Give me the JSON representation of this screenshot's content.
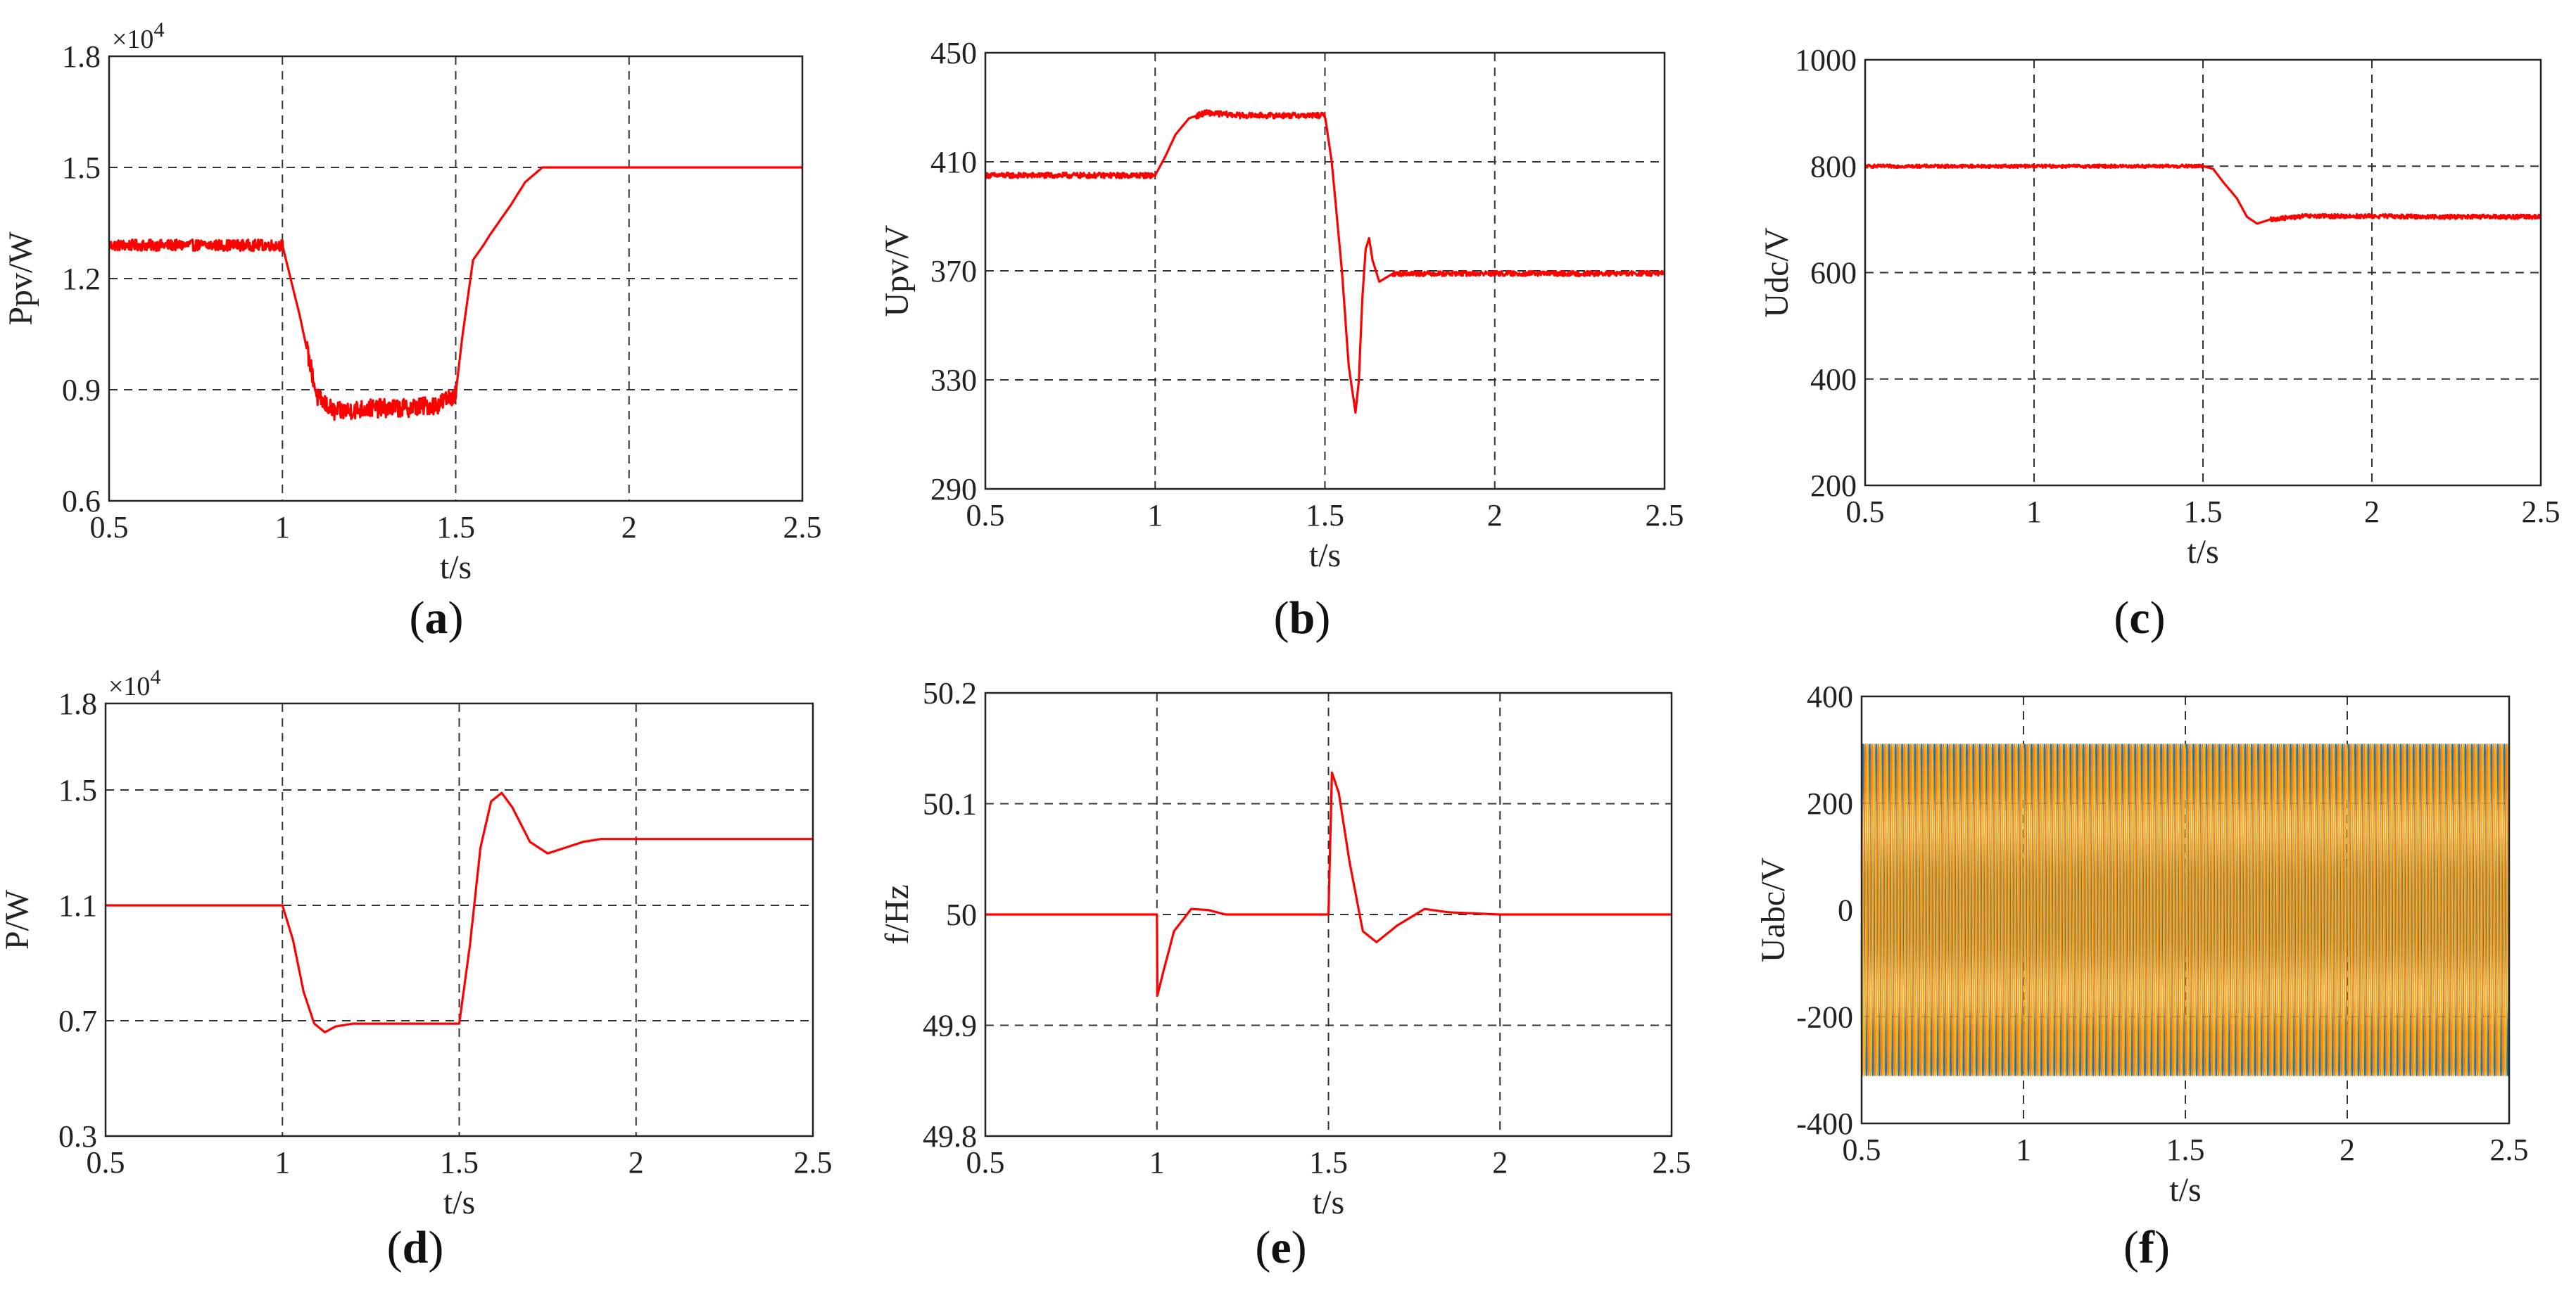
{
  "chart_data": [
    {
      "id": "a",
      "type": "line",
      "sublabel": "a",
      "xlabel": "t/s",
      "ylabel": "Ppv/W",
      "exponent_label": "×10",
      "exponent_power": "4",
      "xlim": [
        0.5,
        2.5
      ],
      "ylim": [
        0.6,
        1.8
      ],
      "xticks": [
        "0.5",
        "1",
        "1.5",
        "2",
        "2.5"
      ],
      "yticks": [
        "0.6",
        "0.9",
        "1.2",
        "1.5",
        "1.8"
      ],
      "color": "#ff0000",
      "series": [
        {
          "x": [
            0.5,
            0.7,
            0.9,
            1.0,
            1.05,
            1.1,
            1.15,
            1.25,
            1.35,
            1.45,
            1.5,
            1.52,
            1.55,
            1.58,
            1.6,
            1.63,
            1.66,
            1.7,
            1.75,
            1.85,
            2.0,
            2.2,
            2.5
          ],
          "y": [
            1.29,
            1.29,
            1.29,
            1.29,
            1.1,
            0.88,
            0.84,
            0.85,
            0.85,
            0.86,
            0.89,
            1.05,
            1.25,
            1.29,
            1.32,
            1.36,
            1.4,
            1.46,
            1.5,
            1.5,
            1.5,
            1.5,
            1.5
          ],
          "noise": [
            [
              0.5,
              1.0,
              0.015
            ],
            [
              1.07,
              1.5,
              0.025
            ]
          ]
        }
      ]
    },
    {
      "id": "b",
      "type": "line",
      "sublabel": "b",
      "xlabel": "t/s",
      "ylabel": "Upv/V",
      "xlim": [
        0.5,
        2.5
      ],
      "ylim": [
        290,
        450
      ],
      "xticks": [
        "0.5",
        "1",
        "1.5",
        "2",
        "2.5"
      ],
      "yticks": [
        "290",
        "330",
        "370",
        "410",
        "450"
      ],
      "color": "#ff0000",
      "series": [
        {
          "x": [
            0.5,
            0.8,
            1.0,
            1.03,
            1.06,
            1.1,
            1.15,
            1.25,
            1.4,
            1.5,
            1.52,
            1.55,
            1.57,
            1.59,
            1.6,
            1.61,
            1.62,
            1.63,
            1.64,
            1.66,
            1.7,
            1.8,
            2.0,
            2.2,
            2.5
          ],
          "y": [
            405,
            405,
            405,
            412,
            420,
            426,
            428,
            427,
            427,
            427,
            410,
            370,
            335,
            318,
            330,
            360,
            378,
            382,
            374,
            366,
            369,
            369,
            369,
            369,
            369
          ],
          "noise": [
            [
              0.5,
              1.0,
              1.0
            ],
            [
              1.12,
              1.5,
              1.0
            ],
            [
              1.7,
              2.5,
              0.9
            ]
          ]
        }
      ]
    },
    {
      "id": "c",
      "type": "line",
      "sublabel": "c",
      "xlabel": "t/s",
      "ylabel": "Udc/V",
      "xlim": [
        0.5,
        2.5
      ],
      "ylim": [
        200,
        1000
      ],
      "xticks": [
        "0.5",
        "1",
        "1.5",
        "2",
        "2.5"
      ],
      "yticks": [
        "200",
        "400",
        "600",
        "800",
        "1000"
      ],
      "color": "#ff0000",
      "series": [
        {
          "x": [
            0.5,
            1.0,
            1.4,
            1.5,
            1.53,
            1.56,
            1.6,
            1.63,
            1.66,
            1.7,
            1.8,
            2.0,
            2.2,
            2.5
          ],
          "y": [
            800,
            800,
            800,
            800,
            795,
            770,
            740,
            705,
            692,
            700,
            706,
            706,
            705,
            705
          ],
          "noise": [
            [
              0.5,
              1.5,
              3.0
            ],
            [
              1.7,
              2.5,
              4.0
            ]
          ]
        }
      ]
    },
    {
      "id": "d",
      "type": "line",
      "sublabel": "d",
      "xlabel": "t/s",
      "ylabel": "P/W",
      "exponent_label": "×10",
      "exponent_power": "4",
      "xlim": [
        0.5,
        2.5
      ],
      "ylim": [
        0.3,
        1.8
      ],
      "xticks": [
        "0.5",
        "1",
        "1.5",
        "2",
        "2.5"
      ],
      "yticks": [
        "0.3",
        "0.7",
        "1.1",
        "1.5",
        "1.8"
      ],
      "color": "#ff0000",
      "series": [
        {
          "x": [
            0.5,
            0.9,
            1.0,
            1.03,
            1.06,
            1.09,
            1.12,
            1.15,
            1.2,
            1.3,
            1.5,
            1.53,
            1.56,
            1.59,
            1.62,
            1.65,
            1.7,
            1.75,
            1.8,
            1.85,
            1.9,
            2.0,
            2.2,
            2.5
          ],
          "y": [
            1.1,
            1.1,
            1.1,
            0.98,
            0.8,
            0.69,
            0.66,
            0.68,
            0.69,
            0.69,
            0.69,
            0.96,
            1.3,
            1.46,
            1.49,
            1.44,
            1.32,
            1.28,
            1.3,
            1.32,
            1.33,
            1.33,
            1.33,
            1.33
          ]
        }
      ]
    },
    {
      "id": "e",
      "type": "line",
      "sublabel": "e",
      "xlabel": "t/s",
      "ylabel": "f/Hz",
      "xlim": [
        0.5,
        2.5
      ],
      "ylim": [
        49.8,
        50.2
      ],
      "xticks": [
        "0.5",
        "1",
        "1.5",
        "2",
        "2.5"
      ],
      "yticks": [
        "49.8",
        "49.9",
        "50",
        "50.1",
        "50.2"
      ],
      "color": "#ff0000",
      "series": [
        {
          "x": [
            0.5,
            1.0,
            1.0,
            1.02,
            1.05,
            1.1,
            1.15,
            1.2,
            1.3,
            1.49,
            1.5,
            1.51,
            1.53,
            1.56,
            1.6,
            1.64,
            1.7,
            1.78,
            1.85,
            2.0,
            2.5
          ],
          "y": [
            50.0,
            50.0,
            49.925,
            49.95,
            49.985,
            50.005,
            50.004,
            50.0,
            50.0,
            50.0,
            50.0,
            50.128,
            50.11,
            50.05,
            49.985,
            49.975,
            49.99,
            50.005,
            50.002,
            50.0,
            50.0
          ]
        }
      ]
    },
    {
      "id": "f",
      "type": "line",
      "sublabel": "f",
      "xlabel": "t/s",
      "ylabel": "Uabc/V",
      "xlim": [
        0.5,
        2.5
      ],
      "ylim": [
        -400,
        400
      ],
      "xticks": [
        "0.5",
        "1",
        "1.5",
        "2",
        "2.5"
      ],
      "yticks": [
        "-400",
        "-200",
        "0",
        "200",
        "400"
      ],
      "signal": {
        "kind": "three-phase-sine",
        "amplitude": 311,
        "frequency_hz": 50
      },
      "series": [
        {
          "color": "#1f77b4"
        },
        {
          "color": "#ff7f0e"
        },
        {
          "color": "#edb120"
        }
      ]
    }
  ]
}
